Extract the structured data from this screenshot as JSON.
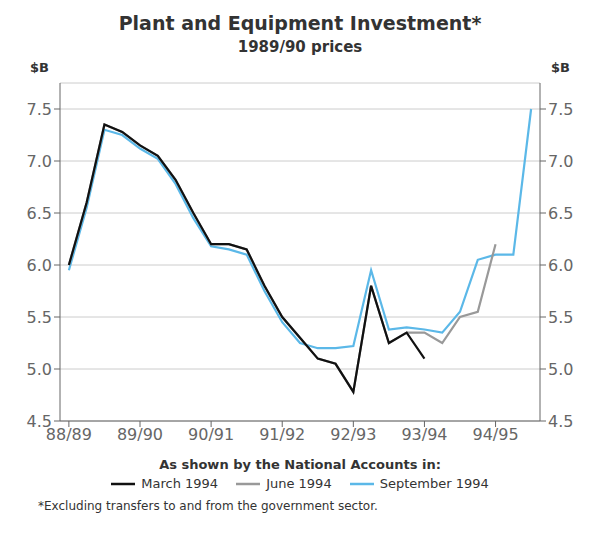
{
  "chart_data": {
    "type": "line",
    "title": "Plant and Equipment Investment*",
    "subtitle": "1989/90 prices",
    "footnote": "*Excluding transfers to and from the government sector.",
    "ylabel": "$B",
    "y2label": "$B",
    "legend_title": "As shown by the National Accounts in:",
    "legend": "bottom",
    "grid": true,
    "series": [
      {
        "name": "March 1994",
        "color": "#111111",
        "x": [
          0,
          1,
          2,
          3,
          4,
          5,
          6,
          7,
          8,
          9,
          10,
          11,
          12,
          13,
          14,
          15,
          16,
          17,
          18,
          19,
          20
        ],
        "values": [
          6.0,
          6.6,
          7.35,
          7.28,
          7.15,
          7.05,
          6.82,
          6.5,
          6.2,
          6.2,
          6.15,
          5.8,
          5.5,
          5.3,
          5.1,
          5.05,
          4.78,
          5.8,
          5.25,
          5.35,
          5.1
        ]
      },
      {
        "name": "June 1994",
        "color": "#999999",
        "x": [
          0,
          1,
          2,
          3,
          4,
          5,
          6,
          7,
          8,
          9,
          10,
          11,
          12,
          13,
          14,
          15,
          16,
          17,
          18,
          19,
          20,
          21,
          22,
          23,
          24
        ],
        "values": [
          6.0,
          6.6,
          7.35,
          7.28,
          7.15,
          7.05,
          6.82,
          6.5,
          6.2,
          6.2,
          6.15,
          5.8,
          5.5,
          5.3,
          5.1,
          5.05,
          4.78,
          5.8,
          5.25,
          5.35,
          5.35,
          5.25,
          5.5,
          5.55,
          6.2
        ]
      },
      {
        "name": "September 1994",
        "color": "#5bb8e8",
        "x": [
          0,
          1,
          2,
          3,
          4,
          5,
          6,
          7,
          8,
          9,
          10,
          11,
          12,
          13,
          14,
          15,
          16,
          17,
          18,
          19,
          20,
          21,
          22,
          23,
          24,
          25,
          26
        ],
        "values": [
          5.95,
          6.55,
          7.3,
          7.25,
          7.12,
          7.02,
          6.78,
          6.45,
          6.18,
          6.15,
          6.1,
          5.75,
          5.45,
          5.25,
          5.2,
          5.2,
          5.22,
          5.95,
          5.38,
          5.4,
          5.38,
          5.35,
          5.55,
          6.05,
          6.1,
          6.1,
          7.5
        ]
      }
    ],
    "xlim": [
      -0.5,
      26.5
    ],
    "xticks": [
      {
        "value": 0,
        "label": "88/89"
      },
      {
        "value": 4,
        "label": "89/90"
      },
      {
        "value": 8,
        "label": "90/91"
      },
      {
        "value": 12,
        "label": "91/92"
      },
      {
        "value": 16,
        "label": "92/93"
      },
      {
        "value": 20,
        "label": "93/94"
      },
      {
        "value": 24,
        "label": "94/95"
      }
    ],
    "ylim": [
      4.5,
      7.75
    ],
    "yticks": [
      4.5,
      {
        "value": 5,
        "label": "5.0"
      },
      5.5,
      {
        "value": 6,
        "label": "6.0"
      },
      6.5,
      {
        "value": 7,
        "label": "7.0"
      },
      7.5
    ],
    "y2lim": [
      4.5,
      7.75
    ],
    "y2ticks": [
      4.5,
      {
        "value": 5,
        "label": "5.0"
      },
      5.5,
      {
        "value": 6,
        "label": "6.0"
      },
      6.5,
      {
        "value": 7,
        "label": "7.0"
      },
      7.5
    ]
  }
}
